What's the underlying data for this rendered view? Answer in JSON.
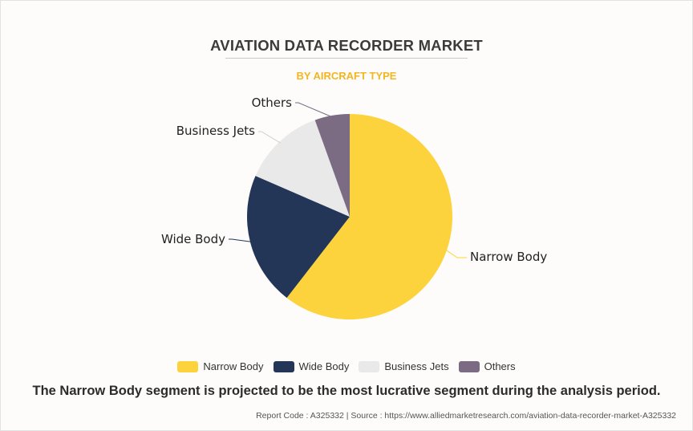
{
  "header": {
    "title": "AVIATION DATA RECORDER MARKET",
    "subtitle": "BY AIRCRAFT TYPE"
  },
  "chart_data": {
    "type": "pie",
    "title": "AVIATION DATA RECORDER MARKET",
    "subtitle": "BY AIRCRAFT TYPE",
    "start_angle_deg": 0,
    "direction": "clockwise",
    "legend_position": "bottom",
    "slices": [
      {
        "label": "Narrow Body",
        "value": 60.5,
        "color": "#fdd33d"
      },
      {
        "label": "Wide Body",
        "value": 21.0,
        "color": "#243657"
      },
      {
        "label": "Business Jets",
        "value": 13.0,
        "color": "#e9e9e9"
      },
      {
        "label": "Others",
        "value": 5.5,
        "color": "#7b6c84"
      }
    ]
  },
  "footer": {
    "statement": "The Narrow Body segment is projected to be the most lucrative segment during the analysis period.",
    "source": "Report Code : A325332  |  Source : https://www.alliedmarketresearch.com/aviation-data-recorder-market-A325332"
  }
}
